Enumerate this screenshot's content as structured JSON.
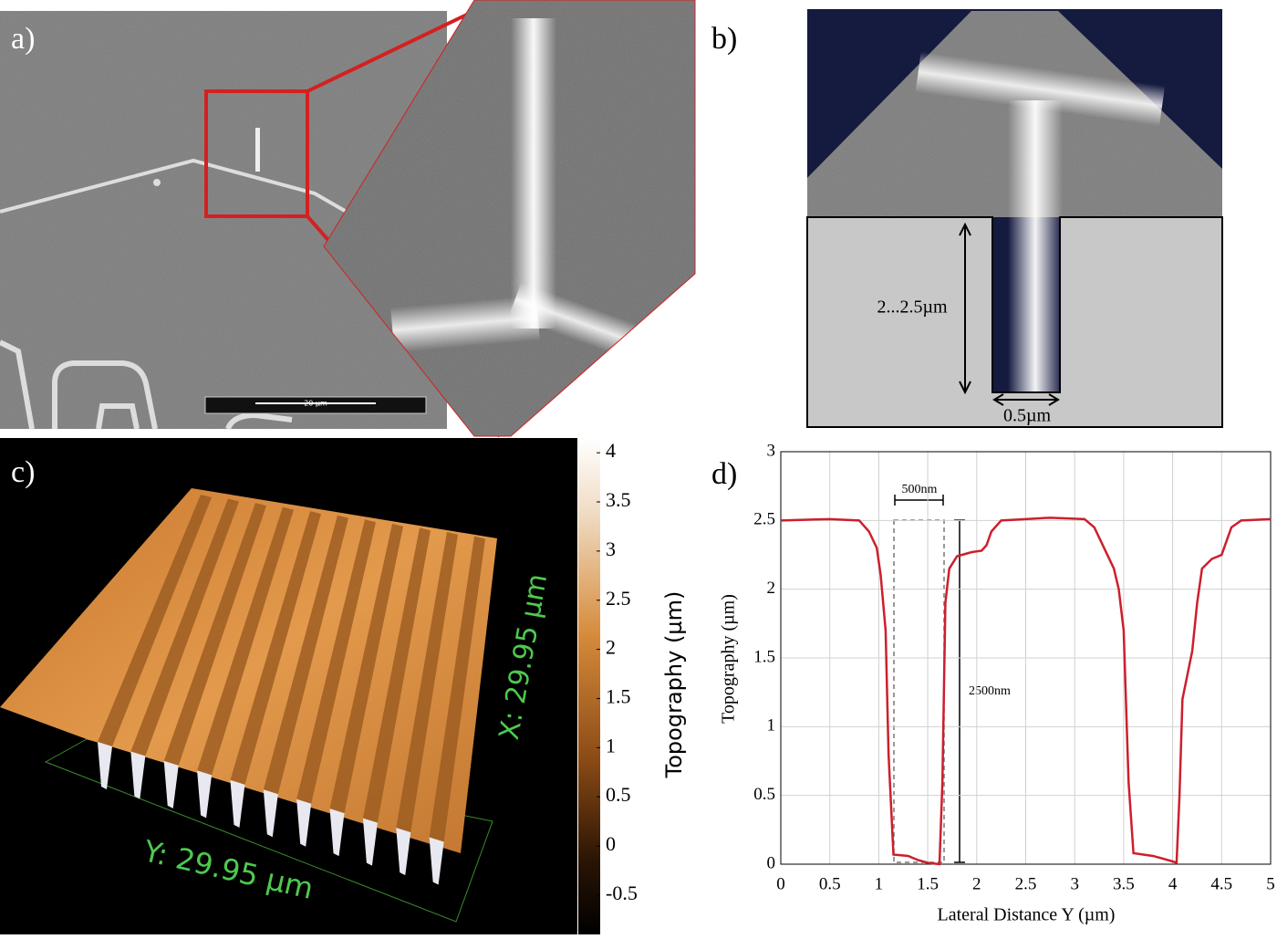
{
  "panels": {
    "a": {
      "label": "a)",
      "scale_bar": "20 µm"
    },
    "b": {
      "label": "b)",
      "depth": "2...2.5µm",
      "width": "0.5µm"
    },
    "c": {
      "label": "c)",
      "x_axis": "X: 29.95 µm",
      "y_axis": "Y: 29.95 µm",
      "colorbar_label": "Topography (µm)",
      "colorbar_ticks": [
        4,
        3.5,
        3,
        2.5,
        2,
        1.5,
        1,
        0.5,
        0,
        -0.5
      ],
      "colorbar_lim": [
        -0.9,
        4.15
      ]
    }
  },
  "chart_data": {
    "type": "line",
    "panel_label": "d)",
    "x_label": "Lateral Distance Y (µm)",
    "y_label": "Topography (µm)",
    "annotations": [
      "500nm",
      "2500nm"
    ],
    "x": [
      0,
      0.5,
      0.8,
      0.9,
      0.98,
      1.02,
      1.07,
      1.1,
      1.15,
      1.3,
      1.4,
      1.5,
      1.62,
      1.65,
      1.68,
      1.72,
      1.8,
      1.95,
      2.05,
      2.1,
      2.15,
      2.25,
      2.5,
      2.75,
      3.1,
      3.2,
      3.3,
      3.4,
      3.45,
      3.5,
      3.55,
      3.6,
      3.7,
      3.8,
      3.9,
      4.0,
      4.04,
      4.07,
      4.1,
      4.2,
      4.25,
      4.3,
      4.4,
      4.5,
      4.55,
      4.6,
      4.7,
      5.0
    ],
    "series": [
      {
        "name": "Topography",
        "color": "#cc1f2d",
        "values": [
          2.5,
          2.51,
          2.5,
          2.42,
          2.3,
          2.1,
          1.7,
          0.8,
          0.07,
          0.06,
          0.03,
          0.01,
          0.0,
          0.6,
          1.9,
          2.15,
          2.24,
          2.27,
          2.28,
          2.32,
          2.42,
          2.5,
          2.51,
          2.52,
          2.51,
          2.45,
          2.3,
          2.15,
          2.0,
          1.7,
          0.6,
          0.08,
          0.07,
          0.06,
          0.04,
          0.02,
          0.01,
          0.5,
          1.2,
          1.55,
          1.9,
          2.15,
          2.22,
          2.25,
          2.35,
          2.45,
          2.5,
          2.51
        ]
      }
    ],
    "xlim": [
      0,
      5
    ],
    "ylim": [
      0,
      3
    ],
    "xticks": [
      0,
      0.5,
      1,
      1.5,
      2,
      2.5,
      3,
      3.5,
      4,
      4.5,
      5
    ],
    "yticks": [
      0,
      0.5,
      1,
      1.5,
      2,
      2.5,
      3
    ],
    "grid": true
  }
}
